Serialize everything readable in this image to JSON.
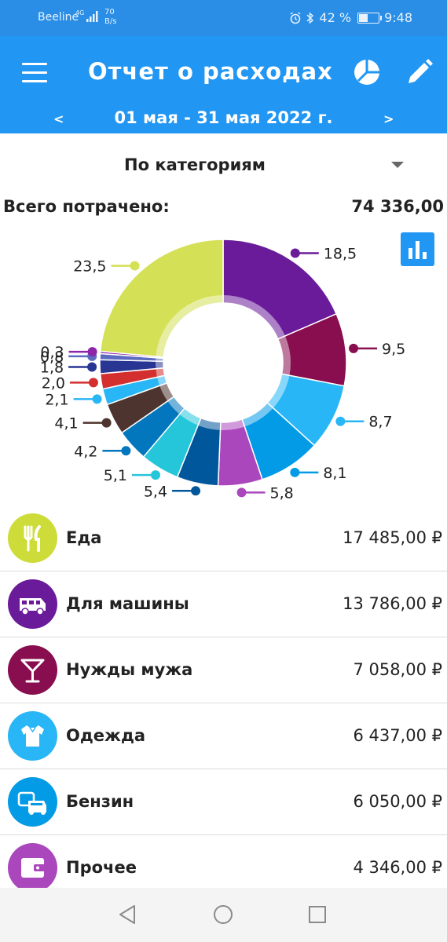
{
  "status_bar": {
    "carrier": "Beeline",
    "network": "4G",
    "speed_value": "70",
    "speed_unit": "B/s",
    "battery": "42 %",
    "time": "9:48"
  },
  "header": {
    "title": "Отчет о расходах",
    "date_prev": "<",
    "date_range": "01 мая - 31 мая 2022 г.",
    "date_next": ">"
  },
  "filter": {
    "group_by": "По категориям"
  },
  "summary": {
    "total_label": "Всего потрачено:",
    "total_value": "74 336,00"
  },
  "chart_data": {
    "type": "pie",
    "values": [
      18.5,
      9.5,
      8.7,
      8.1,
      5.8,
      5.4,
      5.1,
      4.2,
      4.1,
      2.1,
      2.0,
      1.8,
      0.8,
      0.3,
      23.5
    ],
    "labels": [
      "18,5",
      "9,5",
      "8,7",
      "8,1",
      "5,8",
      "5,4",
      "5,1",
      "4,2",
      "4,1",
      "2,1",
      "2,0",
      "1,8",
      "0,8",
      "0,3",
      "23,5"
    ],
    "colors": [
      "#6a1b9a",
      "#880e4f",
      "#29b6f6",
      "#039be5",
      "#ab47bc",
      "#01579b",
      "#26c6da",
      "#0277bd",
      "#4e342e",
      "#29b6f6",
      "#d32f2f",
      "#283593",
      "#5c6bc0",
      "#8e24aa",
      "#d4e157"
    ]
  },
  "categories": [
    {
      "name": "Еда",
      "amount": "17 485,00 ₽",
      "color": "#cddc39",
      "icon": "fork-knife-icon"
    },
    {
      "name": "Для машины",
      "amount": "13 786,00 ₽",
      "color": "#6a1b9a",
      "icon": "van-icon"
    },
    {
      "name": "Нужды мужа",
      "amount": "7 058,00 ₽",
      "color": "#880e4f",
      "icon": "cocktail-glass-icon"
    },
    {
      "name": "Одежда",
      "amount": "6 437,00 ₽",
      "color": "#29b6f6",
      "icon": "shirt-icon"
    },
    {
      "name": "Бензин",
      "amount": "6 050,00 ₽",
      "color": "#039be5",
      "icon": "cars-icon"
    },
    {
      "name": "Прочее",
      "amount": "4 346,00 ₽",
      "color": "#ab47bc",
      "icon": "wallet-icon"
    }
  ]
}
